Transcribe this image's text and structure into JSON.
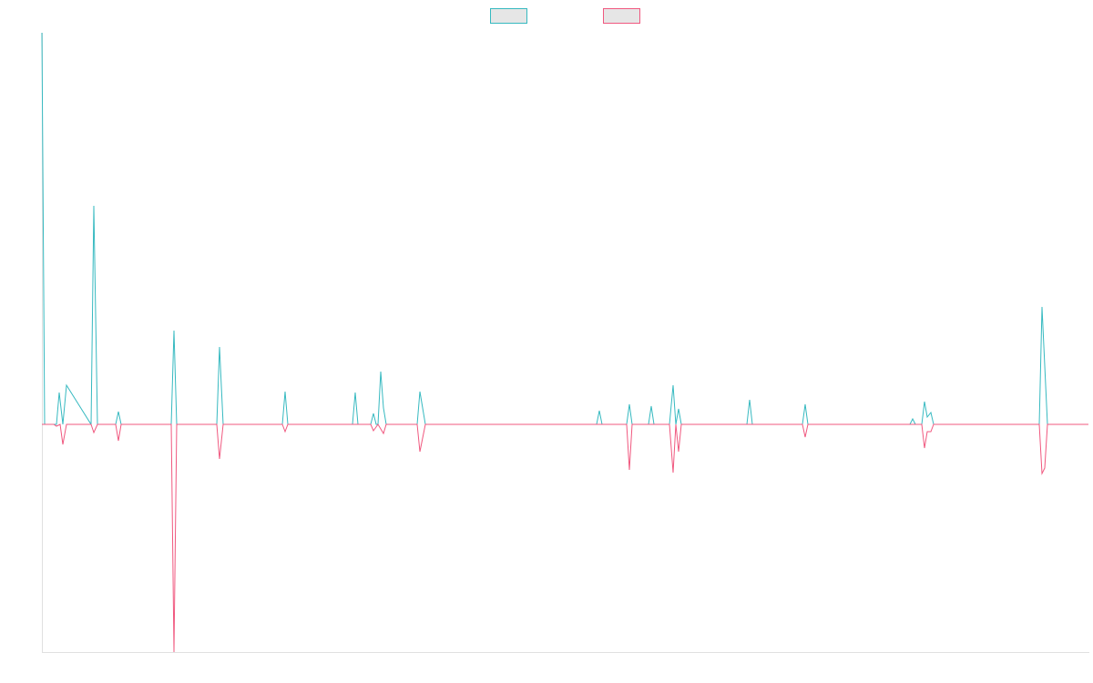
{
  "chart_data": {
    "type": "line",
    "xlim": [
      0,
      1149
    ],
    "ylim": [
      -250,
      430
    ],
    "series": [
      {
        "color": "#36b9c0",
        "x": [
          0,
          3,
          16,
          19,
          23,
          27,
          54,
          57,
          61,
          81,
          84,
          87,
          142,
          145,
          148,
          192,
          195,
          199,
          264,
          267,
          270,
          341,
          344,
          347,
          361,
          364,
          367,
          369,
          372,
          375,
          378,
          412,
          415,
          421,
          609,
          612,
          615,
          642,
          645,
          648,
          666,
          669,
          672,
          689,
          693,
          696,
          699,
          702,
          774,
          777,
          780,
          835,
          838,
          841,
          953,
          956,
          959,
          966,
          969,
          972,
          976,
          979,
          1095,
          1098,
          1104,
          1149
        ],
        "values": [
          430,
          0,
          0,
          35,
          0,
          43,
          0,
          240,
          0,
          0,
          14,
          0,
          0,
          103,
          0,
          0,
          85,
          0,
          0,
          36,
          0,
          0,
          35,
          0,
          0,
          12,
          0,
          0,
          58,
          18,
          0,
          0,
          36,
          0,
          0,
          15,
          0,
          0,
          22,
          0,
          0,
          20,
          0,
          0,
          43,
          0,
          17,
          0,
          0,
          27,
          0,
          0,
          22,
          0,
          0,
          6,
          0,
          0,
          25,
          8,
          13,
          0,
          0,
          129,
          0,
          0
        ]
      },
      {
        "color": "#f0587f",
        "x": [
          0,
          13,
          16,
          20,
          23,
          27,
          54,
          57,
          61,
          81,
          84,
          87,
          142,
          145,
          148,
          192,
          195,
          199,
          264,
          267,
          270,
          361,
          364,
          369,
          375,
          378,
          412,
          415,
          421,
          642,
          645,
          648,
          689,
          693,
          696,
          699,
          702,
          835,
          838,
          841,
          966,
          969,
          972,
          976,
          979,
          1095,
          1098,
          1101,
          1104,
          1149
        ],
        "values": [
          0,
          0,
          -2,
          0,
          -22,
          0,
          0,
          -9,
          0,
          0,
          -18,
          0,
          0,
          -250,
          0,
          0,
          -38,
          0,
          0,
          -8,
          0,
          0,
          -7,
          0,
          -10,
          0,
          0,
          -30,
          0,
          0,
          -50,
          0,
          0,
          -53,
          0,
          -30,
          0,
          0,
          -14,
          0,
          0,
          -26,
          -8,
          -8,
          0,
          0,
          -54,
          -48,
          0,
          0
        ]
      }
    ]
  }
}
